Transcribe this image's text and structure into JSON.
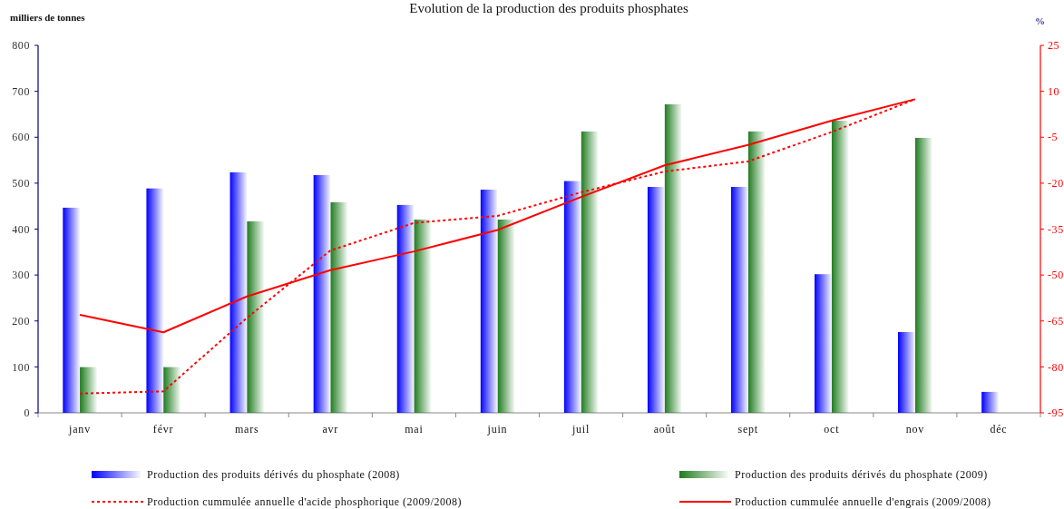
{
  "chart_data": {
    "type": "bar",
    "title": "Evolution de la production des produits phosphates",
    "ylabel": "milliers de tonnes",
    "y2label": "%",
    "categories": [
      "janv",
      "févr",
      "mars",
      "avr",
      "mai",
      "juin",
      "juil",
      "août",
      "sept",
      "oct",
      "nov",
      "déc"
    ],
    "series": [
      {
        "name": "Production des produits dérivés du phosphate (2008)",
        "color": "#0000ff",
        "values": [
          447,
          489,
          524,
          518,
          453,
          486,
          505,
          492,
          492,
          302,
          176,
          46
        ]
      },
      {
        "name": "Production des produits dérivés du phosphate (2009)",
        "color": "#1e7b1e",
        "values": [
          100,
          100,
          417,
          459,
          421,
          421,
          613,
          672,
          613,
          636,
          599,
          null
        ]
      },
      {
        "name": "Production cummulée annuelle d'acide phosphorique (2009/2008)",
        "type": "line",
        "axis": "y2",
        "color": "#ff0000",
        "line_style": "dotted",
        "values": [
          -88.7,
          -88,
          -64,
          -42,
          -33,
          -30.7,
          -23,
          -16.2,
          -12.9,
          -3.3,
          7.4,
          null
        ]
      },
      {
        "name": "Production cummulée annuelle d'engrais (2009/2008)",
        "type": "line",
        "axis": "y2",
        "color": "#ff0000",
        "line_style": "solid",
        "values": [
          -63,
          -68.7,
          -57,
          -48.4,
          -42.3,
          -35.3,
          -24.5,
          -14.2,
          -7.5,
          0.4,
          7.4,
          null
        ]
      }
    ],
    "ylim": [
      0,
      800
    ],
    "yticks": [
      0,
      100,
      200,
      300,
      400,
      500,
      600,
      700,
      800
    ],
    "y2lim": [
      -95,
      25
    ],
    "y2ticks": [
      -95,
      -80,
      -65,
      -50,
      -35,
      -20,
      -5,
      10,
      25
    ],
    "legend": "bottom"
  }
}
